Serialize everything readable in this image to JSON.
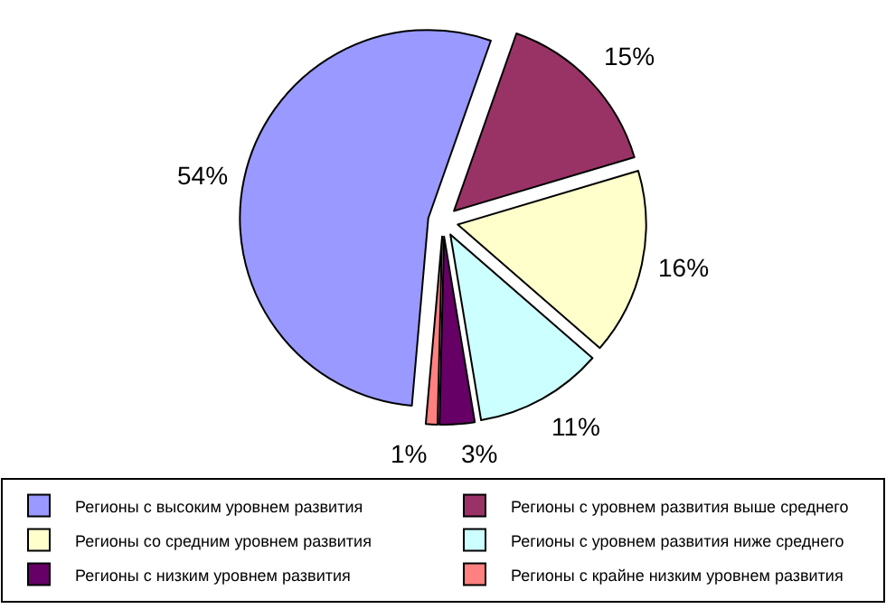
{
  "chart_data": {
    "type": "pie",
    "categories": [
      "Регионы с высоким уровнем развития",
      "Регионы с уровнем развития выше среднего",
      "Регионы со средним уровнем развития",
      "Регионы с уровнем развития ниже среднего",
      "Регионы с низким уровнем развития",
      "Регионы с крайне низким уровнем развития"
    ],
    "values": [
      54,
      15,
      16,
      11,
      3,
      1
    ],
    "value_labels": [
      "54%",
      "15%",
      "16%",
      "11%",
      "3%",
      "1%"
    ],
    "colors": [
      "#9999ff",
      "#993366",
      "#ffffcc",
      "#ccffff",
      "#660066",
      "#ff8080"
    ],
    "legend": "bottom"
  }
}
